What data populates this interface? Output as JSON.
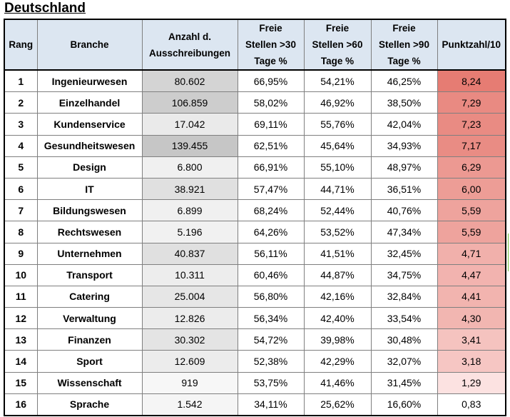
{
  "title": "Deutschland",
  "headers": {
    "rang": "Rang",
    "branche": "Branche",
    "anzahl": [
      "Anzahl d.",
      "Ausschreibungen"
    ],
    "freie30": [
      "Freie",
      "Stellen >30",
      "Tage %"
    ],
    "freie60": [
      "Freie",
      "Stellen >60",
      "Tage %"
    ],
    "freie90": [
      "Freie",
      "Stellen >90",
      "Tage %"
    ],
    "punkt": "Punktzahl/10"
  },
  "colors": {
    "header_bg": "#dce6f1",
    "anzahl_scale_low": "#f7f7f7",
    "anzahl_scale_high": "#c6c6c6",
    "punkt_scale_low": "#fde9e8",
    "punkt_scale_high": "#e67c73"
  },
  "rows": [
    {
      "rang": "1",
      "branche": "Ingenieurwesen",
      "anzahl": "80.602",
      "f30": "66,95%",
      "f60": "54,21%",
      "f90": "46,25%",
      "punkt": "8,24",
      "anzahl_num": 80602,
      "punkt_num": 8.24
    },
    {
      "rang": "2",
      "branche": "Einzelhandel",
      "anzahl": "106.859",
      "f30": "58,02%",
      "f60": "46,92%",
      "f90": "38,50%",
      "punkt": "7,29",
      "anzahl_num": 106859,
      "punkt_num": 7.29
    },
    {
      "rang": "3",
      "branche": "Kundenservice",
      "anzahl": "17.042",
      "f30": "69,11%",
      "f60": "55,76%",
      "f90": "42,04%",
      "punkt": "7,23",
      "anzahl_num": 17042,
      "punkt_num": 7.23
    },
    {
      "rang": "4",
      "branche": "Gesundheitswesen",
      "anzahl": "139.455",
      "f30": "62,51%",
      "f60": "45,64%",
      "f90": "34,93%",
      "punkt": "7,17",
      "anzahl_num": 139455,
      "punkt_num": 7.17
    },
    {
      "rang": "5",
      "branche": "Design",
      "anzahl": "6.800",
      "f30": "66,91%",
      "f60": "55,10%",
      "f90": "48,97%",
      "punkt": "6,29",
      "anzahl_num": 6800,
      "punkt_num": 6.29
    },
    {
      "rang": "6",
      "branche": "IT",
      "anzahl": "38.921",
      "f30": "57,47%",
      "f60": "44,71%",
      "f90": "36,51%",
      "punkt": "6,00",
      "anzahl_num": 38921,
      "punkt_num": 6.0
    },
    {
      "rang": "7",
      "branche": "Bildungswesen",
      "anzahl": "6.899",
      "f30": "68,24%",
      "f60": "52,44%",
      "f90": "40,76%",
      "punkt": "5,59",
      "anzahl_num": 6899,
      "punkt_num": 5.59
    },
    {
      "rang": "8",
      "branche": "Rechtswesen",
      "anzahl": "5.196",
      "f30": "64,26%",
      "f60": "53,52%",
      "f90": "47,34%",
      "punkt": "5,59",
      "anzahl_num": 5196,
      "punkt_num": 5.59
    },
    {
      "rang": "9",
      "branche": "Unternehmen",
      "anzahl": "40.837",
      "f30": "56,11%",
      "f60": "41,51%",
      "f90": "32,45%",
      "punkt": "4,71",
      "anzahl_num": 40837,
      "punkt_num": 4.71
    },
    {
      "rang": "10",
      "branche": "Transport",
      "anzahl": "10.311",
      "f30": "60,46%",
      "f60": "44,87%",
      "f90": "34,75%",
      "punkt": "4,47",
      "anzahl_num": 10311,
      "punkt_num": 4.47
    },
    {
      "rang": "11",
      "branche": "Catering",
      "anzahl": "25.004",
      "f30": "56,80%",
      "f60": "42,16%",
      "f90": "32,84%",
      "punkt": "4,41",
      "anzahl_num": 25004,
      "punkt_num": 4.41
    },
    {
      "rang": "12",
      "branche": "Verwaltung",
      "anzahl": "12.826",
      "f30": "56,34%",
      "f60": "42,40%",
      "f90": "33,54%",
      "punkt": "4,30",
      "anzahl_num": 12826,
      "punkt_num": 4.3
    },
    {
      "rang": "13",
      "branche": "Finanzen",
      "anzahl": "30.302",
      "f30": "54,72%",
      "f60": "39,98%",
      "f90": "30,48%",
      "punkt": "3,41",
      "anzahl_num": 30302,
      "punkt_num": 3.41
    },
    {
      "rang": "14",
      "branche": "Sport",
      "anzahl": "12.609",
      "f30": "52,38%",
      "f60": "42,29%",
      "f90": "32,07%",
      "punkt": "3,18",
      "anzahl_num": 12609,
      "punkt_num": 3.18
    },
    {
      "rang": "15",
      "branche": "Wissenschaft",
      "anzahl": "919",
      "f30": "53,75%",
      "f60": "41,46%",
      "f90": "31,45%",
      "punkt": "1,29",
      "anzahl_num": 919,
      "punkt_num": 1.29
    },
    {
      "rang": "16",
      "branche": "Sprache",
      "anzahl": "1.542",
      "f30": "34,11%",
      "f60": "25,62%",
      "f90": "16,60%",
      "punkt": "0,83",
      "anzahl_num": 1542,
      "punkt_num": 0.83
    }
  ]
}
